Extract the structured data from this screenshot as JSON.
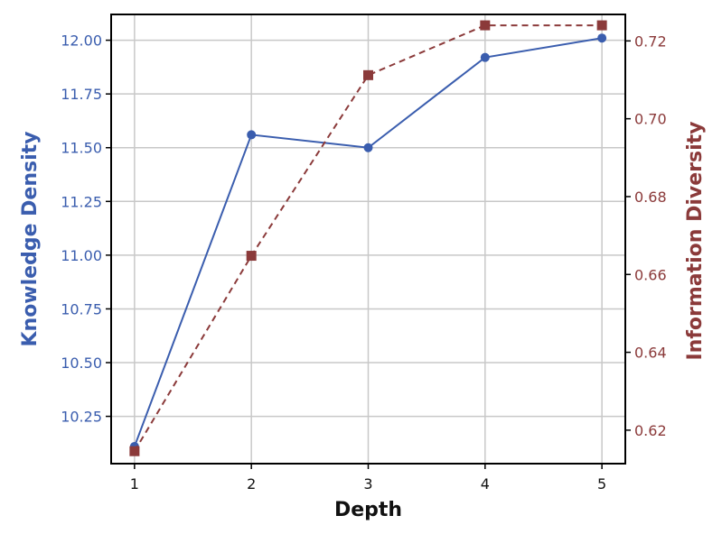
{
  "colors": {
    "left_series": "#3a5dae",
    "right_series": "#8b3a3a",
    "grid": "#c8c8c8",
    "frame": "#000000",
    "text": "#111111"
  },
  "chart_data": {
    "type": "line",
    "title": "",
    "xlabel": "Depth",
    "ylabel_left": "Knowledge Density",
    "ylabel_right": "Information Diversity",
    "x": [
      1,
      2,
      3,
      4,
      5
    ],
    "x_tick_labels": [
      "1",
      "2",
      "3",
      "4",
      "5"
    ],
    "xlim": [
      0.8,
      5.2
    ],
    "ylim_left": [
      10.03,
      12.12
    ],
    "ylim_right": [
      0.6114,
      0.7268
    ],
    "left_ticks": [
      "10.25",
      "10.50",
      "10.75",
      "11.00",
      "11.25",
      "11.50",
      "11.75",
      "12.00"
    ],
    "right_ticks": [
      "0.62",
      "0.64",
      "0.66",
      "0.68",
      "0.70",
      "0.72"
    ],
    "grid": true,
    "series": [
      {
        "axis": "left",
        "style": "solid",
        "marker": "circle",
        "values": [
          10.11,
          11.56,
          11.5,
          11.92,
          12.01
        ]
      },
      {
        "axis": "right",
        "style": "dashed",
        "marker": "square",
        "values": [
          0.6146,
          0.6648,
          0.7112,
          0.724,
          0.724
        ]
      }
    ]
  }
}
